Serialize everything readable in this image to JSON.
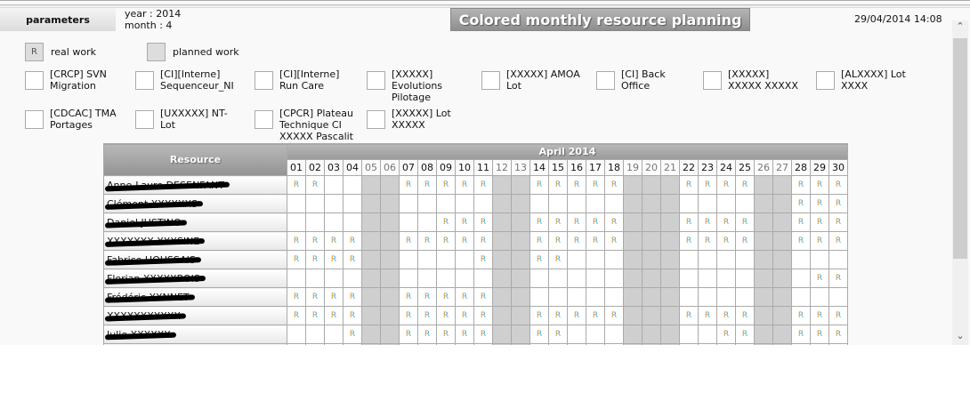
{
  "header": {
    "params_label": "parameters",
    "year": "year : 2014",
    "month": "month : 4",
    "title": "Colored monthly resource planning",
    "datetime": "29/04/2014 14:08"
  },
  "legend": {
    "real_symbol": "R",
    "real_label": "real work",
    "planned_label": "planned work"
  },
  "projects": [
    {
      "label": "[CRCP] SVN Migration"
    },
    {
      "label": "[CI][Interne] Sequenceur_NI"
    },
    {
      "label": "[CI][Interne] Run Care"
    },
    {
      "label": "[XXXXX] Evolutions Pilotage"
    },
    {
      "label": "[XXXXX] AMOA Lot"
    },
    {
      "label": "[CI] Back Office"
    },
    {
      "label": "[XXXXX] XXXXX XXXXX"
    },
    {
      "label": "[ALXXXX] Lot XXXX"
    },
    {
      "label": "[CDCAC] TMA Portages"
    },
    {
      "label": "[UXXXXX] NT-Lot"
    },
    {
      "label": "[CPCR] Plateau Technique CI XXXXX Pascalit"
    },
    {
      "label": "[XXXXX] Lot XXXXX"
    }
  ],
  "table": {
    "resource_header": "Resource",
    "month_header": "April 2014",
    "cell_symbol": "R",
    "weekend_days": [
      5,
      6,
      12,
      13,
      19,
      20,
      21,
      26,
      27
    ],
    "days": [
      "01",
      "02",
      "03",
      "04",
      "05",
      "06",
      "07",
      "08",
      "09",
      "10",
      "11",
      "12",
      "13",
      "14",
      "15",
      "16",
      "17",
      "18",
      "19",
      "20",
      "21",
      "22",
      "23",
      "24",
      "25",
      "26",
      "27",
      "28",
      "29",
      "30"
    ],
    "rows": [
      {
        "name": "Anne-Laure DESENFANT",
        "real": [
          1,
          2,
          7,
          8,
          9,
          10,
          11,
          14,
          15,
          16,
          17,
          18,
          22,
          23,
          24,
          25,
          28,
          29,
          30
        ]
      },
      {
        "name": "Clément XXXXXXS",
        "real": [
          28,
          29,
          30
        ]
      },
      {
        "name": "Daniel JUSTINO",
        "real": [
          9,
          10,
          11,
          14,
          15,
          16,
          17,
          18,
          22,
          23,
          24,
          25,
          28,
          29,
          30
        ]
      },
      {
        "name": "XXXXXXX XXXSINE",
        "real": [
          1,
          2,
          3,
          4,
          7,
          8,
          9,
          10,
          11,
          14,
          15,
          16,
          17,
          18,
          22,
          23,
          24,
          25,
          28,
          29,
          30
        ]
      },
      {
        "name": "Fabrice HOUSSAIS",
        "real": [
          1,
          2,
          3,
          4,
          11,
          14,
          15
        ]
      },
      {
        "name": "Florian XXXXXBOIS",
        "real": [
          29,
          30
        ]
      },
      {
        "name": "Frédéric XXNNET",
        "real": [
          1,
          2,
          3,
          4,
          7,
          8,
          9,
          10,
          11
        ]
      },
      {
        "name": "XXXXXXXXXXX",
        "real": [
          1,
          2,
          3,
          4,
          7,
          8,
          9,
          10,
          11,
          14,
          15,
          16,
          17,
          18,
          22,
          23,
          24,
          25,
          28,
          29,
          30
        ]
      },
      {
        "name": "Julie XXXXXX",
        "real": [
          4,
          7,
          8,
          9,
          10,
          11,
          14,
          15,
          24,
          25,
          28,
          29,
          30
        ]
      },
      {
        "name": "",
        "real": []
      }
    ]
  }
}
